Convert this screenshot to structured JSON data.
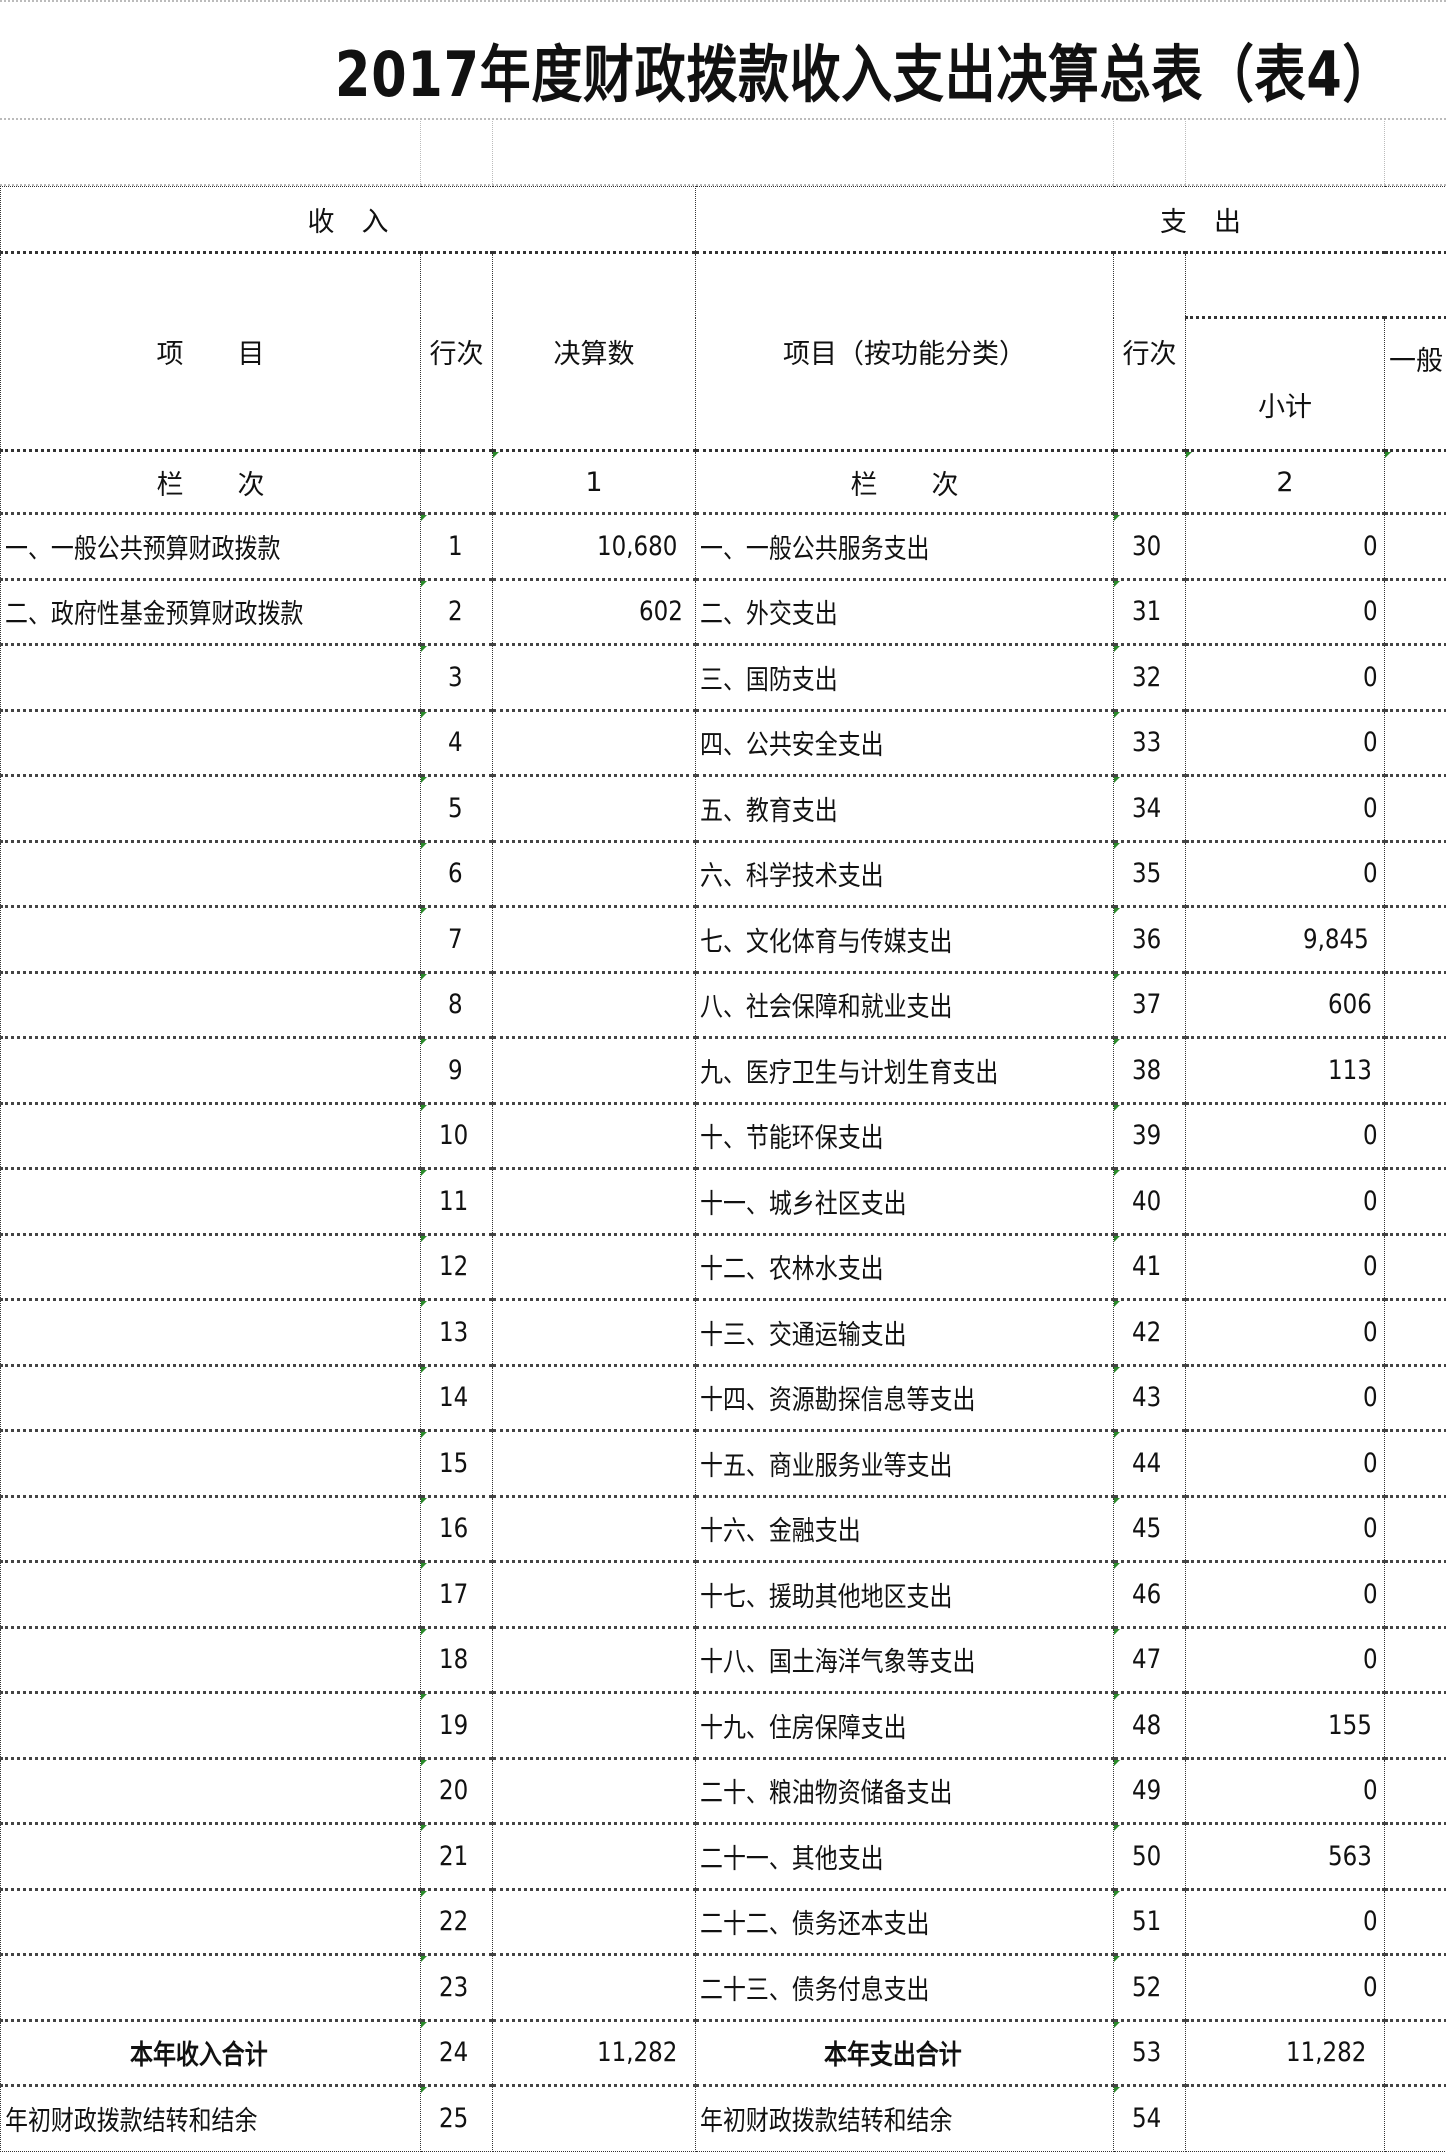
{
  "title": "2017年度财政拨款收入支出决算总表（表4）",
  "header": {
    "income": "收　入",
    "expense": "支　出",
    "item": "项　　目",
    "row_no": "行次",
    "final_amount": "决算数",
    "item_by_function": "项目（按功能分类）",
    "row_no_2": "行次",
    "subtotal": "小计",
    "general_budget_cut": "一般",
    "column_index_label": "栏　　次",
    "column_index_label_2": "栏　　次",
    "column_1": "1",
    "column_2": "2"
  },
  "rows": [
    {
      "income_item": "一、一般公共预算财政拨款",
      "income_no": "1",
      "income_amount": "10,680",
      "expense_item": "一、一般公共服务支出",
      "expense_no": "30",
      "subtotal": "0"
    },
    {
      "income_item": "二、政府性基金预算财政拨款",
      "income_no": "2",
      "income_amount": "602",
      "expense_item": "二、外交支出",
      "expense_no": "31",
      "subtotal": "0"
    },
    {
      "income_item": "",
      "income_no": "3",
      "income_amount": "",
      "expense_item": "三、国防支出",
      "expense_no": "32",
      "subtotal": "0"
    },
    {
      "income_item": "",
      "income_no": "4",
      "income_amount": "",
      "expense_item": "四、公共安全支出",
      "expense_no": "33",
      "subtotal": "0"
    },
    {
      "income_item": "",
      "income_no": "5",
      "income_amount": "",
      "expense_item": "五、教育支出",
      "expense_no": "34",
      "subtotal": "0"
    },
    {
      "income_item": "",
      "income_no": "6",
      "income_amount": "",
      "expense_item": "六、科学技术支出",
      "expense_no": "35",
      "subtotal": "0"
    },
    {
      "income_item": "",
      "income_no": "7",
      "income_amount": "",
      "expense_item": "七、文化体育与传媒支出",
      "expense_no": "36",
      "subtotal": "9,845"
    },
    {
      "income_item": "",
      "income_no": "8",
      "income_amount": "",
      "expense_item": "八、社会保障和就业支出",
      "expense_no": "37",
      "subtotal": "606"
    },
    {
      "income_item": "",
      "income_no": "9",
      "income_amount": "",
      "expense_item": "九、医疗卫生与计划生育支出",
      "expense_no": "38",
      "subtotal": "113"
    },
    {
      "income_item": "",
      "income_no": "10",
      "income_amount": "",
      "expense_item": "十、节能环保支出",
      "expense_no": "39",
      "subtotal": "0"
    },
    {
      "income_item": "",
      "income_no": "11",
      "income_amount": "",
      "expense_item": "十一、城乡社区支出",
      "expense_no": "40",
      "subtotal": "0"
    },
    {
      "income_item": "",
      "income_no": "12",
      "income_amount": "",
      "expense_item": "十二、农林水支出",
      "expense_no": "41",
      "subtotal": "0"
    },
    {
      "income_item": "",
      "income_no": "13",
      "income_amount": "",
      "expense_item": "十三、交通运输支出",
      "expense_no": "42",
      "subtotal": "0"
    },
    {
      "income_item": "",
      "income_no": "14",
      "income_amount": "",
      "expense_item": "十四、资源勘探信息等支出",
      "expense_no": "43",
      "subtotal": "0"
    },
    {
      "income_item": "",
      "income_no": "15",
      "income_amount": "",
      "expense_item": "十五、商业服务业等支出",
      "expense_no": "44",
      "subtotal": "0"
    },
    {
      "income_item": "",
      "income_no": "16",
      "income_amount": "",
      "expense_item": "十六、金融支出",
      "expense_no": "45",
      "subtotal": "0"
    },
    {
      "income_item": "",
      "income_no": "17",
      "income_amount": "",
      "expense_item": "十七、援助其他地区支出",
      "expense_no": "46",
      "subtotal": "0"
    },
    {
      "income_item": "",
      "income_no": "18",
      "income_amount": "",
      "expense_item": "十八、国土海洋气象等支出",
      "expense_no": "47",
      "subtotal": "0"
    },
    {
      "income_item": "",
      "income_no": "19",
      "income_amount": "",
      "expense_item": "十九、住房保障支出",
      "expense_no": "48",
      "subtotal": "155"
    },
    {
      "income_item": "",
      "income_no": "20",
      "income_amount": "",
      "expense_item": "二十、粮油物资储备支出",
      "expense_no": "49",
      "subtotal": "0"
    },
    {
      "income_item": "",
      "income_no": "21",
      "income_amount": "",
      "expense_item": "二十一、其他支出",
      "expense_no": "50",
      "subtotal": "563"
    },
    {
      "income_item": "",
      "income_no": "22",
      "income_amount": "",
      "expense_item": "二十二、债务还本支出",
      "expense_no": "51",
      "subtotal": "0"
    },
    {
      "income_item": "",
      "income_no": "23",
      "income_amount": "",
      "expense_item": "二十三、债务付息支出",
      "expense_no": "52",
      "subtotal": "0"
    }
  ],
  "totals": {
    "income_label": "本年收入合计",
    "income_no": "24",
    "income_amount": "11,282",
    "expense_label": "本年支出合计",
    "expense_no": "53",
    "subtotal": "11,282"
  },
  "carryover": {
    "income_label": "年初财政拨款结转和结余",
    "income_no": "25",
    "expense_label": "年初财政拨款结转和结余",
    "expense_no": "54"
  }
}
